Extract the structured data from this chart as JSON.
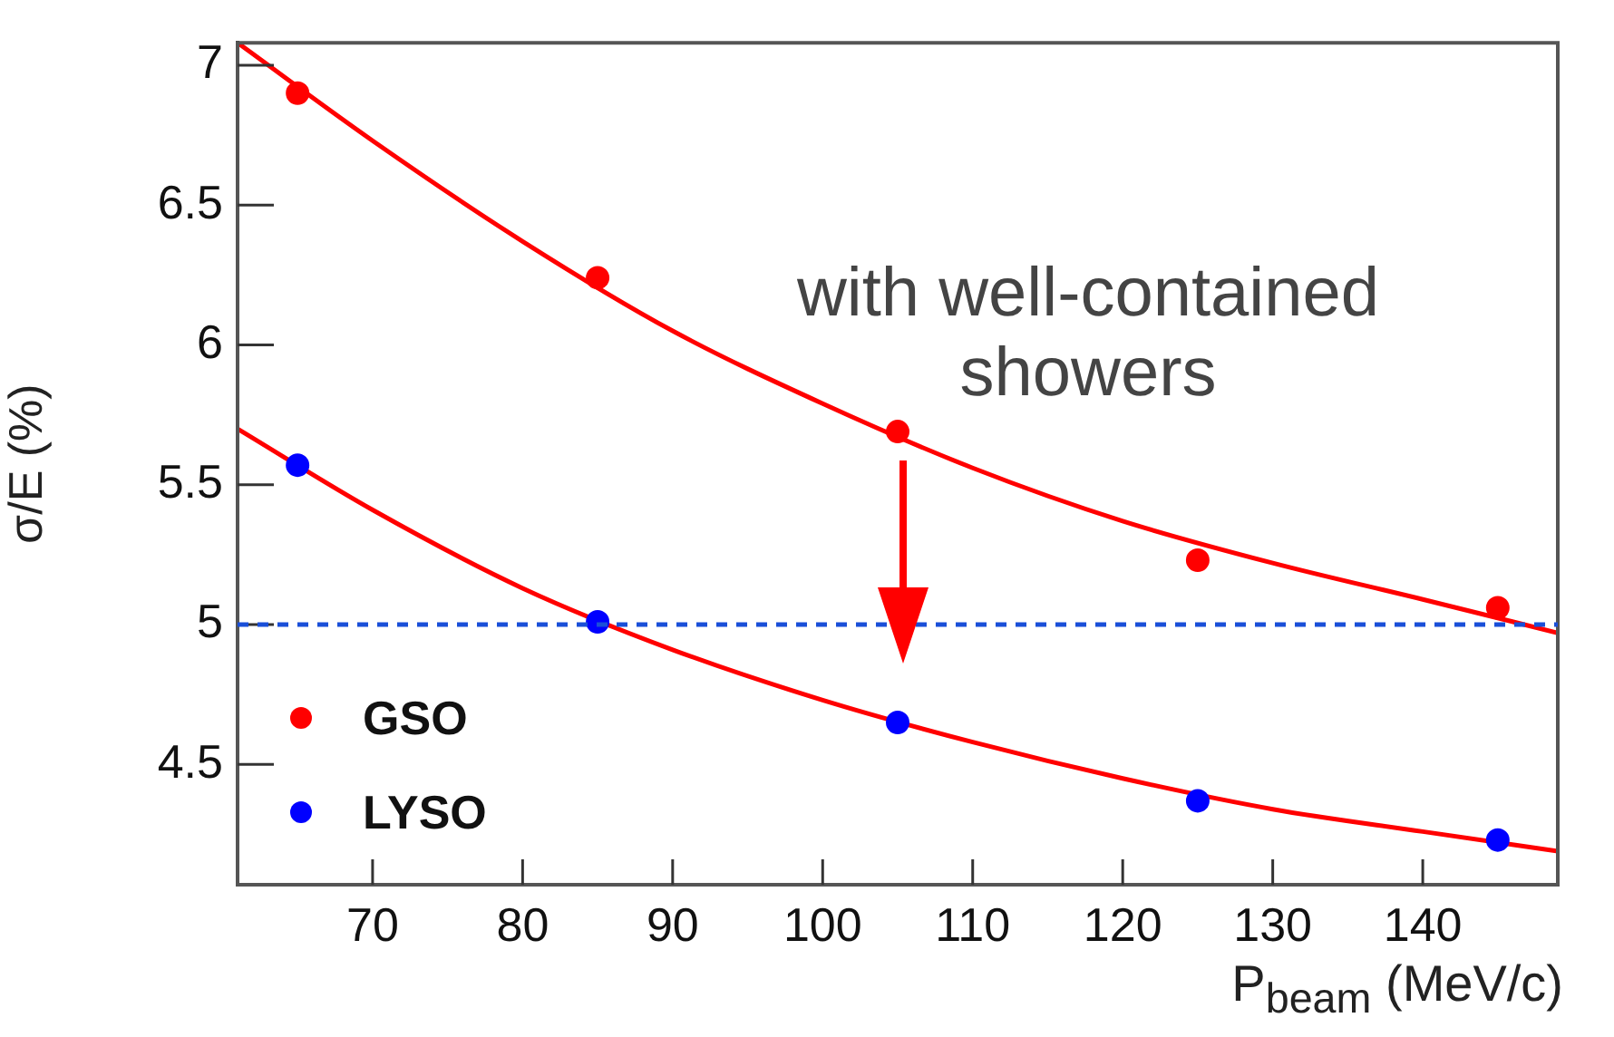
{
  "chart_data": {
    "type": "scatter",
    "xlabel": "P$_{beam}$ (MeV/c)",
    "ylabel": "σ/E (%)",
    "annotations": [
      "with well-contained showers"
    ],
    "xlim": [
      61,
      149
    ],
    "xticks": [
      70,
      80,
      90,
      100,
      110,
      120,
      130,
      140
    ],
    "ylim": [
      4.07,
      7.08
    ],
    "yticks": [
      4.5,
      5,
      5.5,
      6,
      6.5,
      7
    ],
    "grid": false,
    "legend": "bottom left",
    "marker": "circle",
    "ref_lines": [
      {
        "axis": "y",
        "value": 5,
        "color": "#1a4fd8",
        "line_style": "dashed"
      }
    ],
    "series": [
      {
        "name": "GSO",
        "color": "#ff0000",
        "x": [
          65,
          85,
          105,
          125,
          145
        ],
        "values": [
          6.9,
          6.24,
          5.69,
          5.23,
          5.06
        ]
      },
      {
        "name": "LYSO",
        "color": "#0000ff",
        "x": [
          65,
          85,
          105,
          125,
          145
        ],
        "values": [
          5.57,
          5.01,
          4.65,
          4.37,
          4.23
        ]
      },
      {
        "type": "line",
        "color": "#ff0000",
        "marker": "none",
        "x": [
          61,
          70,
          80,
          90,
          100,
          110,
          120,
          130,
          140,
          149
        ],
        "values": [
          7.08,
          6.73,
          6.37,
          6.05,
          5.79,
          5.56,
          5.37,
          5.22,
          5.09,
          4.97
        ]
      },
      {
        "type": "line",
        "color": "#ff0000",
        "marker": "none",
        "x": [
          61,
          70,
          80,
          90,
          100,
          110,
          120,
          130,
          140,
          149
        ],
        "values": [
          5.7,
          5.41,
          5.13,
          4.91,
          4.73,
          4.58,
          4.45,
          4.34,
          4.26,
          4.19
        ]
      }
    ]
  }
}
